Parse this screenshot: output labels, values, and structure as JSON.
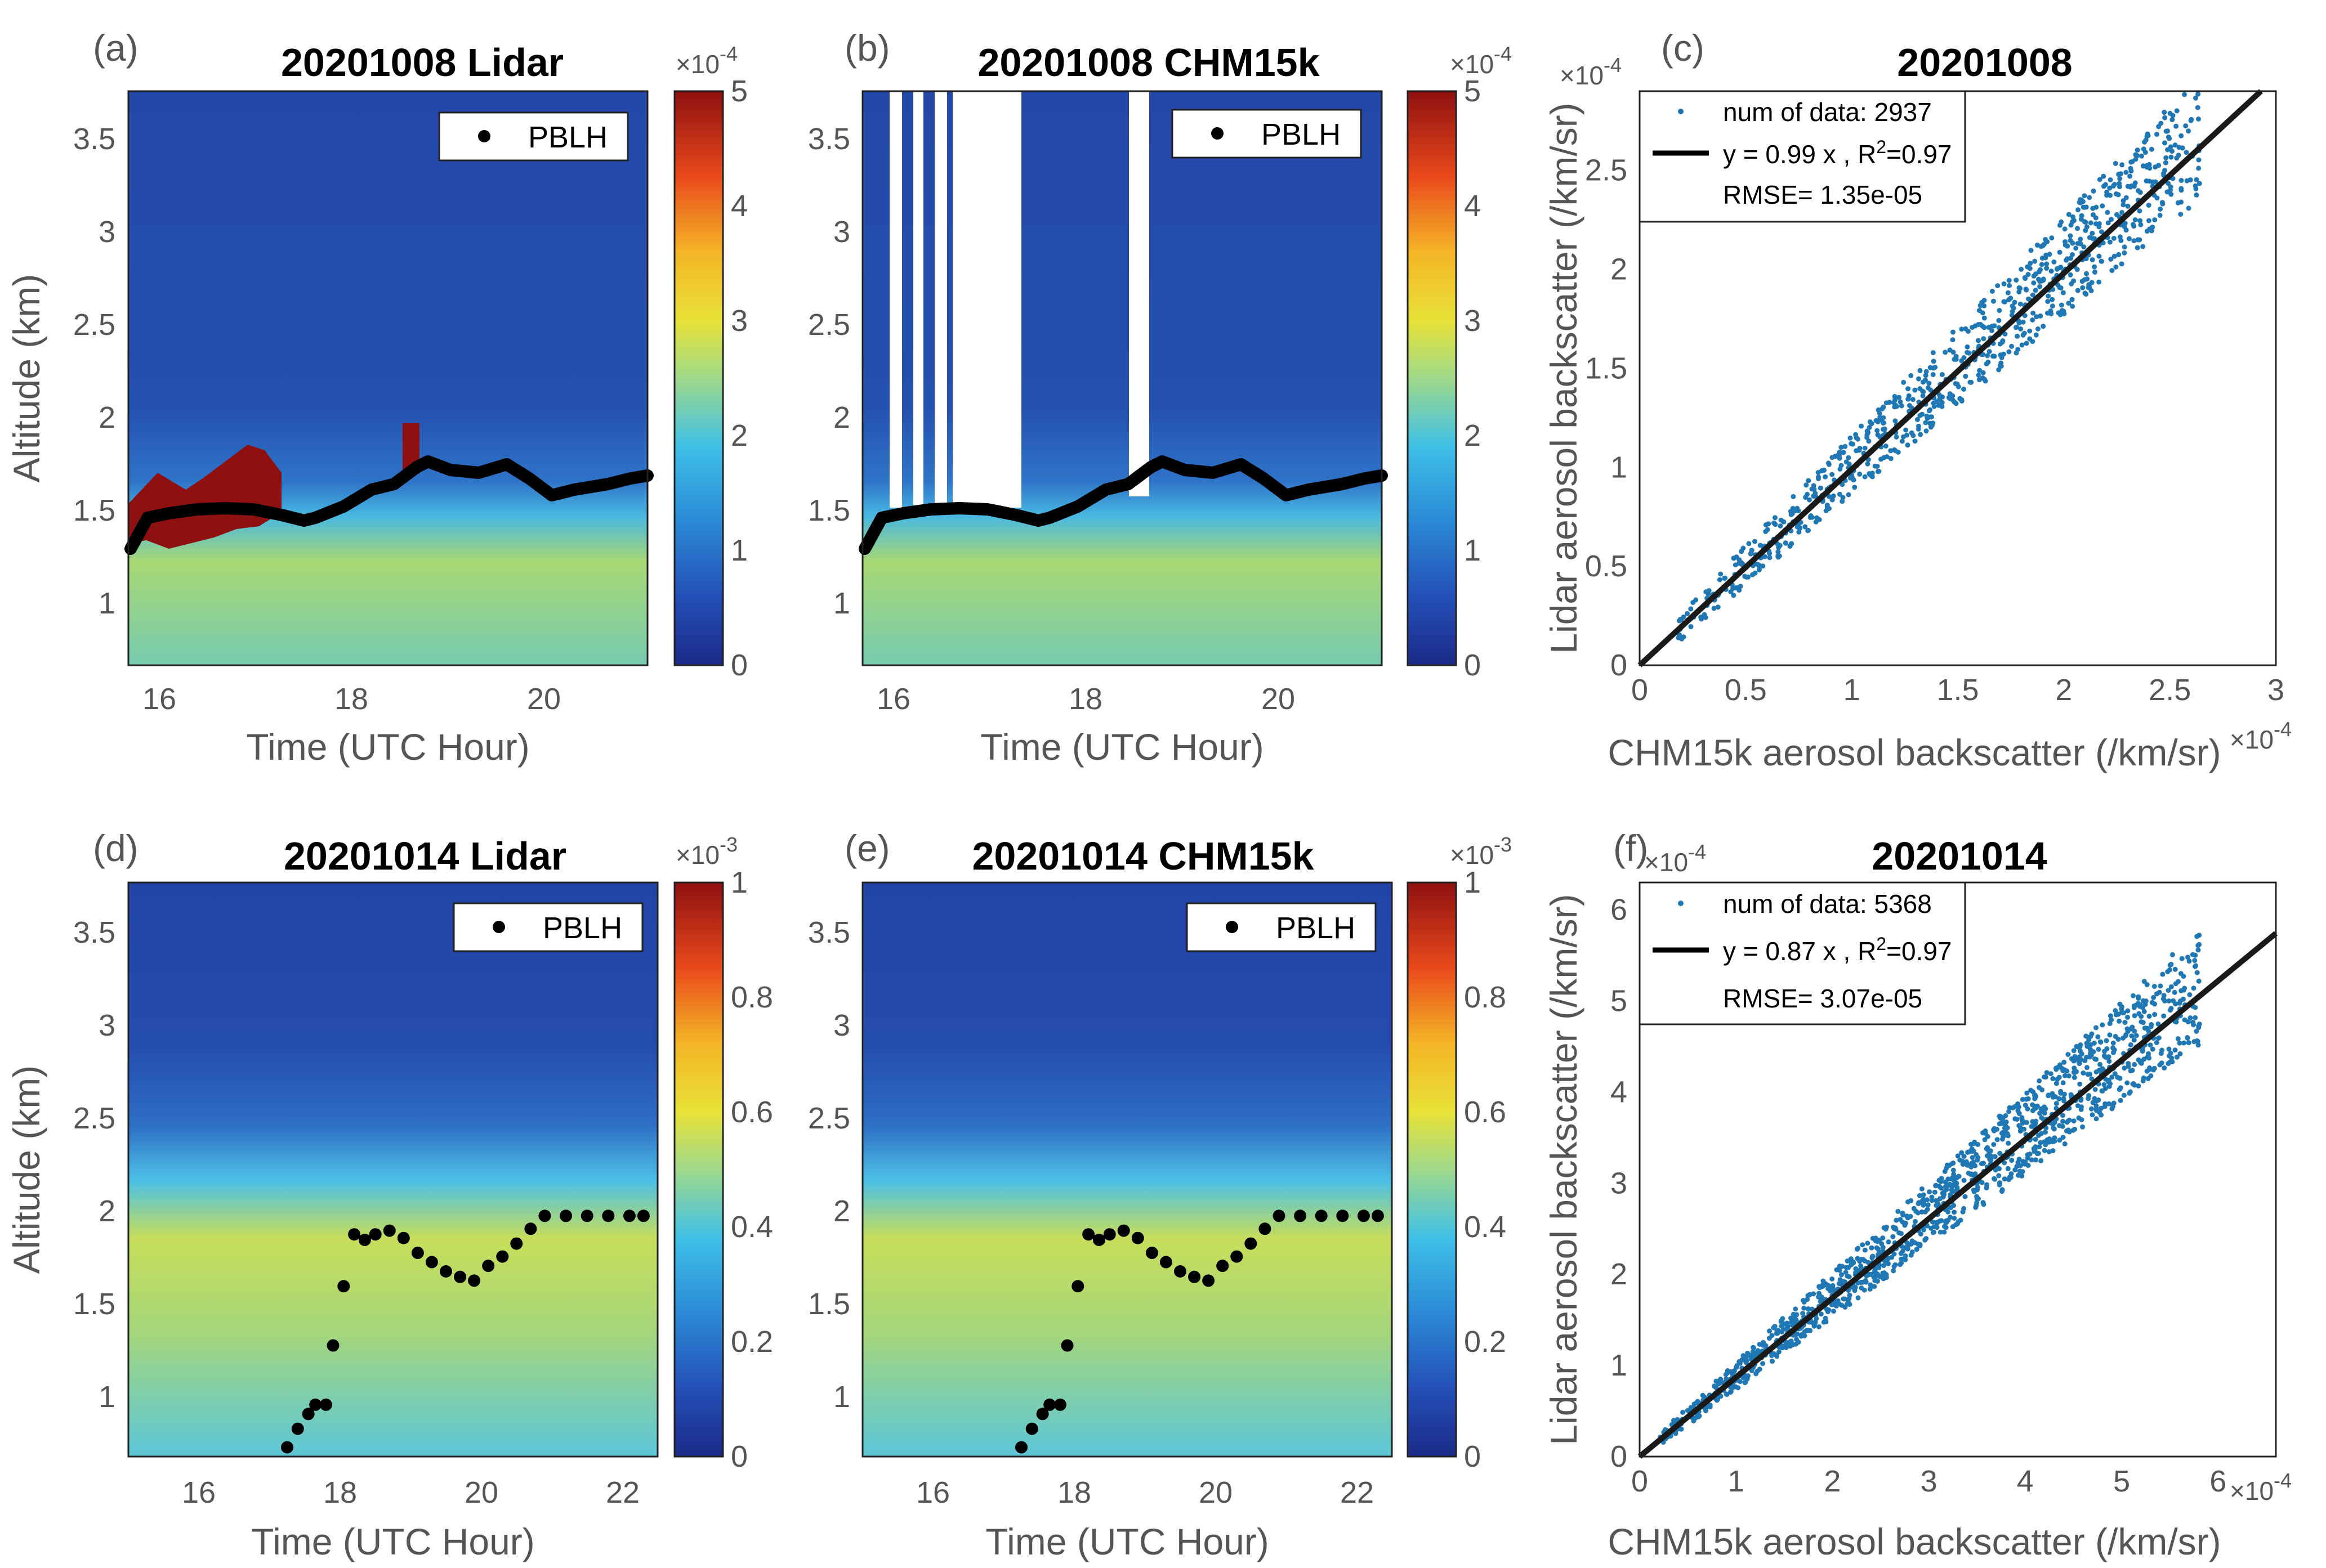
{
  "figure": {
    "panels": [
      {
        "id": "a",
        "label": "(a)",
        "title": "20201008 Lidar",
        "type": "heatmap",
        "xlabel": "Time (UTC Hour)",
        "ylabel": "Altitude (km)",
        "xlim": [
          15.7,
          21.1
        ],
        "ylim": [
          0.65,
          3.75
        ],
        "xticks": [
          "16",
          "18",
          "20"
        ],
        "yticks": [
          "1",
          "1.5",
          "2",
          "2.5",
          "3",
          "3.5"
        ],
        "colorbar": {
          "ticks": [
            "0",
            "1",
            "2",
            "3",
            "4",
            "5"
          ],
          "max": 5,
          "multiplier": "×10",
          "exponent": "-4"
        },
        "legend": "PBLH"
      },
      {
        "id": "b",
        "label": "(b)",
        "title": "20201008 CHM15k",
        "type": "heatmap",
        "xlabel": "Time (UTC Hour)",
        "ylabel": "",
        "xlim": [
          15.7,
          21.1
        ],
        "ylim": [
          0.65,
          3.75
        ],
        "xticks": [
          "16",
          "18",
          "20"
        ],
        "yticks": [
          "1",
          "1.5",
          "2",
          "2.5",
          "3",
          "3.5"
        ],
        "colorbar": {
          "ticks": [
            "0",
            "1",
            "2",
            "3",
            "4",
            "5"
          ],
          "max": 5,
          "multiplier": "×10",
          "exponent": "-4"
        },
        "legend": "PBLH"
      },
      {
        "id": "c",
        "label": "(c)",
        "title": "20201008",
        "type": "scatter",
        "xlabel": "CHM15k aerosol backscatter (/km/sr)",
        "ylabel": "Lidar aerosol backscatter (/km/sr)",
        "xlim": [
          0,
          3
        ],
        "ylim": [
          0,
          2.9
        ],
        "xticks": [
          "0",
          "0.5",
          "1",
          "1.5",
          "2",
          "2.5",
          "3"
        ],
        "yticks": [
          "0",
          "0.5",
          "1",
          "1.5",
          "2",
          "2.5"
        ],
        "x_multiplier": "×10",
        "x_exponent": "-4",
        "y_multiplier": "×10",
        "y_exponent": "-4",
        "legend": {
          "points": "num of data: 2937",
          "fit_prefix": "y = 0.99 x , R",
          "fit_sup": "2",
          "fit_suffix": "=0.97",
          "rmse": "RMSE= 1.35e-05"
        },
        "fit_slope": 0.99
      },
      {
        "id": "d",
        "label": "(d)",
        "title": "20201014 Lidar",
        "type": "heatmap",
        "xlabel": "Time (UTC Hour)",
        "ylabel": "Altitude (km)",
        "xlim": [
          15.0,
          22.5
        ],
        "ylim": [
          0.65,
          3.75
        ],
        "xticks": [
          "16",
          "18",
          "20",
          "22"
        ],
        "yticks": [
          "1",
          "1.5",
          "2",
          "2.5",
          "3",
          "3.5"
        ],
        "colorbar": {
          "ticks": [
            "0",
            "0.2",
            "0.4",
            "0.6",
            "0.8",
            "1"
          ],
          "max": 1,
          "multiplier": "×10",
          "exponent": "-3"
        },
        "legend": "PBLH"
      },
      {
        "id": "e",
        "label": "(e)",
        "title": "20201014 CHM15k",
        "type": "heatmap",
        "xlabel": "Time (UTC Hour)",
        "ylabel": "",
        "xlim": [
          15.0,
          22.5
        ],
        "ylim": [
          0.65,
          3.75
        ],
        "xticks": [
          "16",
          "18",
          "20",
          "22"
        ],
        "yticks": [
          "1",
          "1.5",
          "2",
          "2.5",
          "3",
          "3.5"
        ],
        "colorbar": {
          "ticks": [
            "0",
            "0.2",
            "0.4",
            "0.6",
            "0.8",
            "1"
          ],
          "max": 1,
          "multiplier": "×10",
          "exponent": "-3"
        },
        "legend": "PBLH"
      },
      {
        "id": "f",
        "label": "(f)",
        "title": "20201014",
        "type": "scatter",
        "xlabel": "CHM15k aerosol backscatter (/km/sr)",
        "ylabel": "Lidar aerosol backscatter (/km/sr)",
        "xlim": [
          0,
          6.6
        ],
        "ylim": [
          0,
          6.3
        ],
        "xticks": [
          "0",
          "1",
          "2",
          "3",
          "4",
          "5",
          "6"
        ],
        "yticks": [
          "0",
          "1",
          "2",
          "3",
          "4",
          "5",
          "6"
        ],
        "x_multiplier": "×10",
        "x_exponent": "-4",
        "y_multiplier": "×10",
        "y_exponent": "-4",
        "legend": {
          "points": "num of data: 5368",
          "fit_prefix": "y = 0.87 x , R",
          "fit_sup": "2",
          "fit_suffix": "=0.97",
          "rmse": "RMSE= 3.07e-05"
        },
        "fit_slope": 0.87
      }
    ]
  },
  "chart_data": [
    {
      "type": "heatmap",
      "panel": "a",
      "title": "20201008 Lidar",
      "xlabel": "Time (UTC Hour)",
      "ylabel": "Altitude (km)",
      "xlim": [
        15.7,
        21.1
      ],
      "ylim": [
        0.65,
        3.75
      ],
      "colorbar_range": [
        0,
        0.0005
      ],
      "pblh": {
        "name": "PBLH",
        "x": [
          15.75,
          16.0,
          16.25,
          16.5,
          16.75,
          17.0,
          17.25,
          17.5,
          17.75,
          18.0,
          18.25,
          18.5,
          18.75,
          19.0,
          19.25,
          19.5,
          19.75,
          20.0,
          20.25,
          20.5,
          20.75,
          21.0
        ],
        "y": [
          1.3,
          1.45,
          1.47,
          1.5,
          1.5,
          1.49,
          1.48,
          1.47,
          1.43,
          1.5,
          1.55,
          1.62,
          1.65,
          1.72,
          1.68,
          1.66,
          1.7,
          1.62,
          1.55,
          1.58,
          1.6,
          1.65
        ]
      }
    },
    {
      "type": "heatmap",
      "panel": "b",
      "title": "20201008 CHM15k",
      "xlabel": "Time (UTC Hour)",
      "xlim": [
        15.7,
        21.1
      ],
      "ylim": [
        0.65,
        3.75
      ],
      "colorbar_range": [
        0,
        0.0005
      ],
      "pblh": {
        "name": "PBLH",
        "x": [
          15.75,
          16.0,
          16.25,
          16.5,
          16.75,
          17.0,
          17.25,
          17.5,
          17.75,
          18.0,
          18.25,
          18.5,
          18.75,
          19.0,
          19.25,
          19.5,
          19.75,
          20.0,
          20.25,
          20.5,
          20.75,
          21.0
        ],
        "y": [
          1.3,
          1.45,
          1.47,
          1.5,
          1.5,
          1.49,
          1.48,
          1.47,
          1.43,
          1.5,
          1.55,
          1.62,
          1.65,
          1.72,
          1.68,
          1.66,
          1.7,
          1.62,
          1.55,
          1.58,
          1.6,
          1.65
        ]
      }
    },
    {
      "type": "scatter",
      "panel": "c",
      "title": "20201008",
      "xlabel": "CHM15k aerosol backscatter (/km/sr)",
      "ylabel": "Lidar aerosol backscatter (/km/sr)",
      "xlim": [
        0,
        0.0003
      ],
      "ylim": [
        0,
        0.00029
      ],
      "n": 2937,
      "fit": {
        "slope": 0.99,
        "r2": 0.97,
        "rmse": 1.35e-05
      }
    },
    {
      "type": "heatmap",
      "panel": "d",
      "title": "20201014 Lidar",
      "xlabel": "Time (UTC Hour)",
      "ylabel": "Altitude (km)",
      "xlim": [
        15.0,
        22.5
      ],
      "ylim": [
        0.65,
        3.75
      ],
      "colorbar_range": [
        0,
        0.001
      ],
      "pblh": {
        "name": "PBLH",
        "x": [
          17.25,
          17.4,
          17.55,
          17.65,
          17.8,
          17.9,
          18.05,
          18.2,
          18.35,
          18.5,
          18.7,
          18.9,
          19.1,
          19.3,
          19.5,
          19.7,
          19.9,
          20.1,
          20.3,
          20.5,
          20.7,
          20.9,
          21.2,
          21.5,
          21.8,
          22.1,
          22.3
        ],
        "y": [
          0.7,
          0.8,
          0.88,
          0.93,
          0.93,
          1.25,
          1.57,
          1.85,
          1.82,
          1.85,
          1.87,
          1.83,
          1.75,
          1.7,
          1.65,
          1.62,
          1.6,
          1.68,
          1.73,
          1.8,
          1.88,
          1.95,
          1.95,
          1.95,
          1.95,
          1.95,
          1.95
        ]
      }
    },
    {
      "type": "heatmap",
      "panel": "e",
      "title": "20201014 CHM15k",
      "xlabel": "Time (UTC Hour)",
      "xlim": [
        15.0,
        22.5
      ],
      "ylim": [
        0.65,
        3.75
      ],
      "colorbar_range": [
        0,
        0.001
      ],
      "pblh": {
        "name": "PBLH",
        "x": [
          17.25,
          17.4,
          17.55,
          17.65,
          17.8,
          17.9,
          18.05,
          18.2,
          18.35,
          18.5,
          18.7,
          18.9,
          19.1,
          19.3,
          19.5,
          19.7,
          19.9,
          20.1,
          20.3,
          20.5,
          20.7,
          20.9,
          21.2,
          21.5,
          21.8,
          22.1,
          22.3
        ],
        "y": [
          0.7,
          0.8,
          0.88,
          0.93,
          0.93,
          1.25,
          1.57,
          1.85,
          1.82,
          1.85,
          1.87,
          1.83,
          1.75,
          1.7,
          1.65,
          1.62,
          1.6,
          1.68,
          1.73,
          1.8,
          1.88,
          1.95,
          1.95,
          1.95,
          1.95,
          1.95,
          1.95
        ]
      }
    },
    {
      "type": "scatter",
      "panel": "f",
      "title": "20201014",
      "xlabel": "CHM15k aerosol backscatter (/km/sr)",
      "ylabel": "Lidar aerosol backscatter (/km/sr)",
      "xlim": [
        0,
        0.00066
      ],
      "ylim": [
        0,
        0.00063
      ],
      "n": 5368,
      "fit": {
        "slope": 0.87,
        "r2": 0.97,
        "rmse": 3.07e-05
      }
    }
  ]
}
